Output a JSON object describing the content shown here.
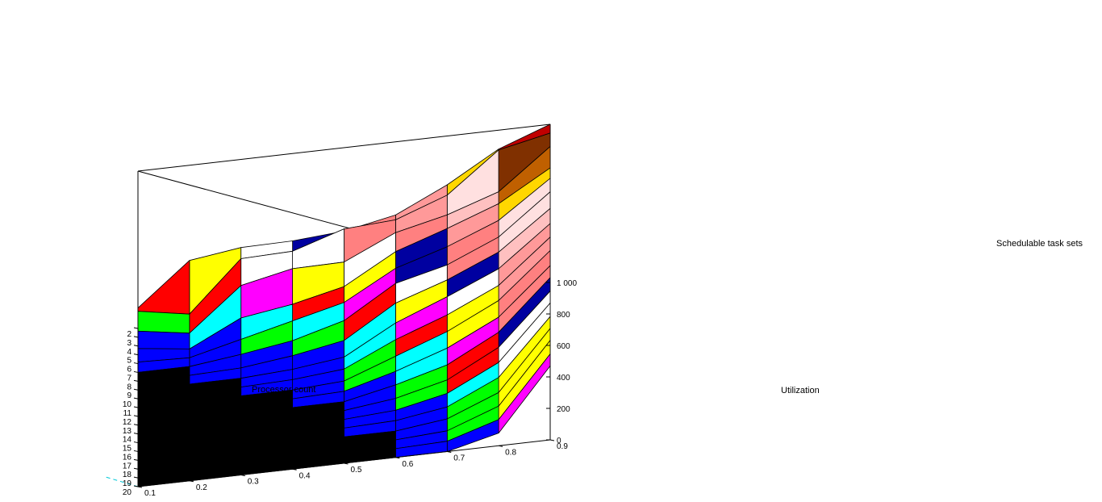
{
  "chart_data": {
    "type": "surface",
    "title": "",
    "xlabel": "Processor count",
    "ylabel": "Utilization",
    "zlabel": "Schedulable task sets",
    "x_ticks": [
      "2",
      "3",
      "4",
      "5",
      "6",
      "7",
      "8",
      "9",
      "10",
      "11",
      "12",
      "13",
      "14",
      "15",
      "16",
      "17",
      "18",
      "19",
      "20"
    ],
    "y_ticks": [
      "0.1",
      "0.2",
      "0.3",
      "0.4",
      "0.5",
      "0.6",
      "0.7",
      "0.8",
      "0.9"
    ],
    "z_ticks": [
      "0",
      "200",
      "400",
      "600",
      "800",
      "1 000"
    ],
    "xlim": [
      2,
      20
    ],
    "ylim": [
      0.1,
      0.9
    ],
    "zlim": [
      0,
      1000
    ],
    "grid": false,
    "processor_counts": [
      2,
      3,
      4,
      5,
      6,
      7,
      8,
      9,
      10,
      11,
      12,
      13,
      14,
      15,
      16,
      17,
      18,
      19,
      20
    ],
    "utilization": [
      0.1,
      0.2,
      0.3,
      0.4,
      0.5,
      0.6,
      0.7,
      0.8,
      0.9
    ],
    "schedulable_task_sets": [
      [
        130,
        395,
        440,
        445,
        470,
        535,
        690,
        880,
        1000
      ],
      [
        165,
        110,
        425,
        435,
        540,
        560,
        680,
        930,
        1000
      ],
      [
        95,
        45,
        310,
        380,
        385,
        535,
        610,
        720,
        970
      ],
      [
        40,
        0,
        160,
        210,
        285,
        470,
        580,
        700,
        890
      ],
      [
        10,
        0,
        80,
        160,
        240,
        420,
        520,
        650,
        880
      ],
      [
        0,
        0,
        40,
        90,
        180,
        380,
        460,
        600,
        850
      ],
      [
        0,
        0,
        10,
        50,
        110,
        310,
        420,
        560,
        800
      ],
      [
        0,
        0,
        0,
        20,
        60,
        240,
        370,
        510,
        760
      ],
      [
        0,
        0,
        0,
        10,
        40,
        190,
        310,
        460,
        730
      ],
      [
        0,
        0,
        0,
        0,
        20,
        140,
        260,
        420,
        700
      ],
      [
        0,
        0,
        0,
        0,
        10,
        100,
        210,
        370,
        660
      ],
      [
        0,
        0,
        0,
        0,
        0,
        70,
        160,
        330,
        640
      ],
      [
        0,
        0,
        0,
        0,
        0,
        40,
        120,
        290,
        610
      ],
      [
        0,
        0,
        0,
        0,
        0,
        20,
        90,
        250,
        590
      ],
      [
        0,
        0,
        0,
        0,
        0,
        10,
        60,
        210,
        560
      ],
      [
        0,
        0,
        0,
        0,
        0,
        0,
        40,
        170,
        540
      ],
      [
        0,
        0,
        0,
        0,
        0,
        0,
        20,
        140,
        520
      ],
      [
        0,
        0,
        0,
        0,
        0,
        0,
        10,
        110,
        490
      ],
      [
        0,
        0,
        0,
        0,
        0,
        0,
        0,
        80,
        470
      ]
    ]
  },
  "palette": {
    "colormap": [
      "#000000",
      "#0000ff",
      "#00ff00",
      "#00ffff",
      "#ff0000",
      "#ff00ff",
      "#ffff00",
      "#ffffff",
      "#0000a0",
      "#ff8080",
      "#ff9999",
      "#ffc0c0",
      "#ffe0e0",
      "#ffd700",
      "#c06000",
      "#803000",
      "#c00000"
    ],
    "edge": "#000000",
    "box_line": "#000000",
    "hidden_axis_line": "#00c8d8",
    "background": "#ffffff"
  }
}
